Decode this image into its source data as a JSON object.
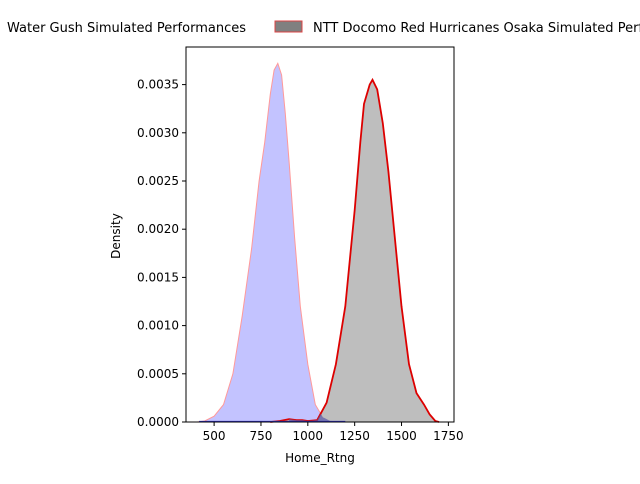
{
  "chart_data": {
    "type": "area",
    "title": "",
    "xlabel": "Home_Rtng",
    "ylabel": "Density",
    "xlim": [
      350,
      1780
    ],
    "ylim": [
      0,
      0.00389
    ],
    "grid": false,
    "legend_position": "top, above plot",
    "x_ticks": [
      500,
      750,
      1000,
      1250,
      1500,
      1750
    ],
    "x_tick_labels": [
      "500",
      "750",
      "1000",
      "1250",
      "1500",
      "1750"
    ],
    "y_ticks": [
      0,
      0.0005,
      0.001,
      0.0015,
      0.002,
      0.0025,
      0.003,
      0.0035
    ],
    "y_tick_labels": [
      "0.0000",
      "0.0005",
      "0.0010",
      "0.0015",
      "0.0020",
      "0.0025",
      "0.0030",
      "0.0035"
    ],
    "series": [
      {
        "name": "Water Gush Simulated Performances",
        "fill_color": "#c0c0ff",
        "line_color": "#ff9999",
        "x": [
          410,
          450,
          500,
          550,
          600,
          650,
          700,
          740,
          770,
          800,
          820,
          840,
          860,
          880,
          900,
          930,
          960,
          1000,
          1040,
          1080,
          1120,
          1160,
          1200
        ],
        "y": [
          0.0,
          1e-05,
          6e-05,
          0.00018,
          0.0005,
          0.0011,
          0.0018,
          0.0025,
          0.0029,
          0.0034,
          0.00365,
          0.00372,
          0.0036,
          0.0032,
          0.0027,
          0.0019,
          0.0012,
          0.0006,
          0.00018,
          5e-05,
          1e-05,
          0.0,
          0.0
        ]
      },
      {
        "name": "NTT Docomo Red Hurricanes Osaka Simulated Performances",
        "fill_color": "#bbbbbb",
        "line_color": "#dd0000",
        "x": [
          800,
          850,
          900,
          940,
          970,
          1000,
          1050,
          1100,
          1150,
          1200,
          1250,
          1280,
          1300,
          1330,
          1345,
          1370,
          1400,
          1430,
          1460,
          1500,
          1540,
          1580,
          1620,
          1650,
          1680,
          1700
        ],
        "y": [
          0.0,
          1e-05,
          3e-05,
          2e-05,
          2e-05,
          1e-05,
          2e-05,
          0.0002,
          0.0006,
          0.0012,
          0.0022,
          0.0029,
          0.0033,
          0.0035,
          0.00355,
          0.00345,
          0.0031,
          0.0026,
          0.002,
          0.0012,
          0.0006,
          0.0003,
          0.00018,
          8e-05,
          1e-05,
          0.0
        ]
      }
    ]
  }
}
